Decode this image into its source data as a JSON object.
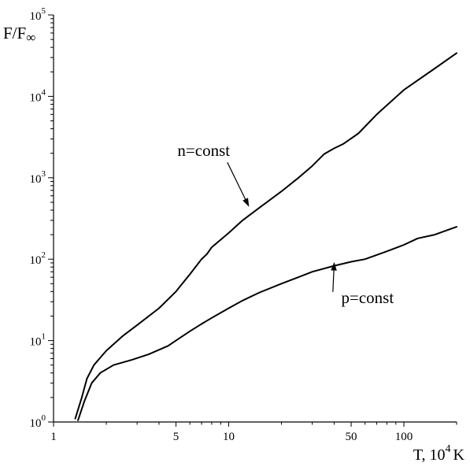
{
  "chart_data": {
    "type": "line",
    "title": "",
    "xlabel": {
      "main": "T, 10",
      "exp": "4",
      "unit": "K"
    },
    "ylabel": {
      "base": "F/F",
      "sub": "∞"
    },
    "x_scale": "log",
    "y_scale": "log",
    "xlim": [
      1,
      200
    ],
    "ylim": [
      1,
      100000
    ],
    "x_tick_labels": [
      {
        "value": 1,
        "label": "1"
      },
      {
        "value": 5,
        "label": "5"
      },
      {
        "value": 10,
        "label": "10"
      },
      {
        "value": 50,
        "label": "50"
      },
      {
        "value": 100,
        "label": "100"
      }
    ],
    "y_tick_labels": [
      {
        "value": 1,
        "base": "10",
        "exp": "0"
      },
      {
        "value": 10,
        "base": "10",
        "exp": "1"
      },
      {
        "value": 100,
        "base": "10",
        "exp": "2"
      },
      {
        "value": 1000,
        "base": "10",
        "exp": "3"
      },
      {
        "value": 10000,
        "base": "10",
        "exp": "4"
      },
      {
        "value": 100000,
        "base": "10",
        "exp": "5"
      }
    ],
    "grid": false,
    "legend": "none",
    "series": [
      {
        "name": "n=const",
        "points": [
          [
            1.33,
            1.1
          ],
          [
            1.45,
            2.0
          ],
          [
            1.55,
            3.4
          ],
          [
            1.7,
            5.0
          ],
          [
            2.0,
            7.5
          ],
          [
            2.5,
            11.5
          ],
          [
            3.0,
            15.5
          ],
          [
            4.0,
            25
          ],
          [
            5.0,
            40
          ],
          [
            6.0,
            65
          ],
          [
            7.0,
            100
          ],
          [
            7.5,
            115
          ],
          [
            8.0,
            140
          ],
          [
            10,
            210
          ],
          [
            12,
            300
          ],
          [
            15,
            430
          ],
          [
            20,
            680
          ],
          [
            25,
            1000
          ],
          [
            30,
            1400
          ],
          [
            35,
            1950
          ],
          [
            40,
            2300
          ],
          [
            45,
            2600
          ],
          [
            55,
            3500
          ],
          [
            70,
            6000
          ],
          [
            100,
            12000
          ],
          [
            150,
            22000
          ],
          [
            200,
            34000
          ]
        ]
      },
      {
        "name": "p=const",
        "points": [
          [
            1.38,
            1.05
          ],
          [
            1.5,
            1.8
          ],
          [
            1.65,
            3.0
          ],
          [
            1.85,
            4.0
          ],
          [
            2.2,
            5.0
          ],
          [
            2.8,
            5.8
          ],
          [
            3.5,
            6.8
          ],
          [
            4.0,
            7.7
          ],
          [
            4.5,
            8.6
          ],
          [
            5.0,
            10
          ],
          [
            6.0,
            13
          ],
          [
            7.0,
            16
          ],
          [
            8.0,
            19
          ],
          [
            10,
            25
          ],
          [
            12,
            31
          ],
          [
            15,
            39
          ],
          [
            20,
            50
          ],
          [
            25,
            60
          ],
          [
            30,
            70
          ],
          [
            40,
            83
          ],
          [
            50,
            93
          ],
          [
            60,
            100
          ],
          [
            80,
            125
          ],
          [
            100,
            150
          ],
          [
            120,
            180
          ],
          [
            150,
            200
          ],
          [
            200,
            250
          ]
        ]
      }
    ],
    "annotations": [
      {
        "text": "n=const",
        "text_at": [
          7.2,
          1850
        ],
        "arrow_to": [
          13,
          450
        ]
      },
      {
        "text": "p=const",
        "text_at": [
          62,
          29
        ],
        "arrow_to": [
          40,
          90
        ]
      }
    ]
  }
}
